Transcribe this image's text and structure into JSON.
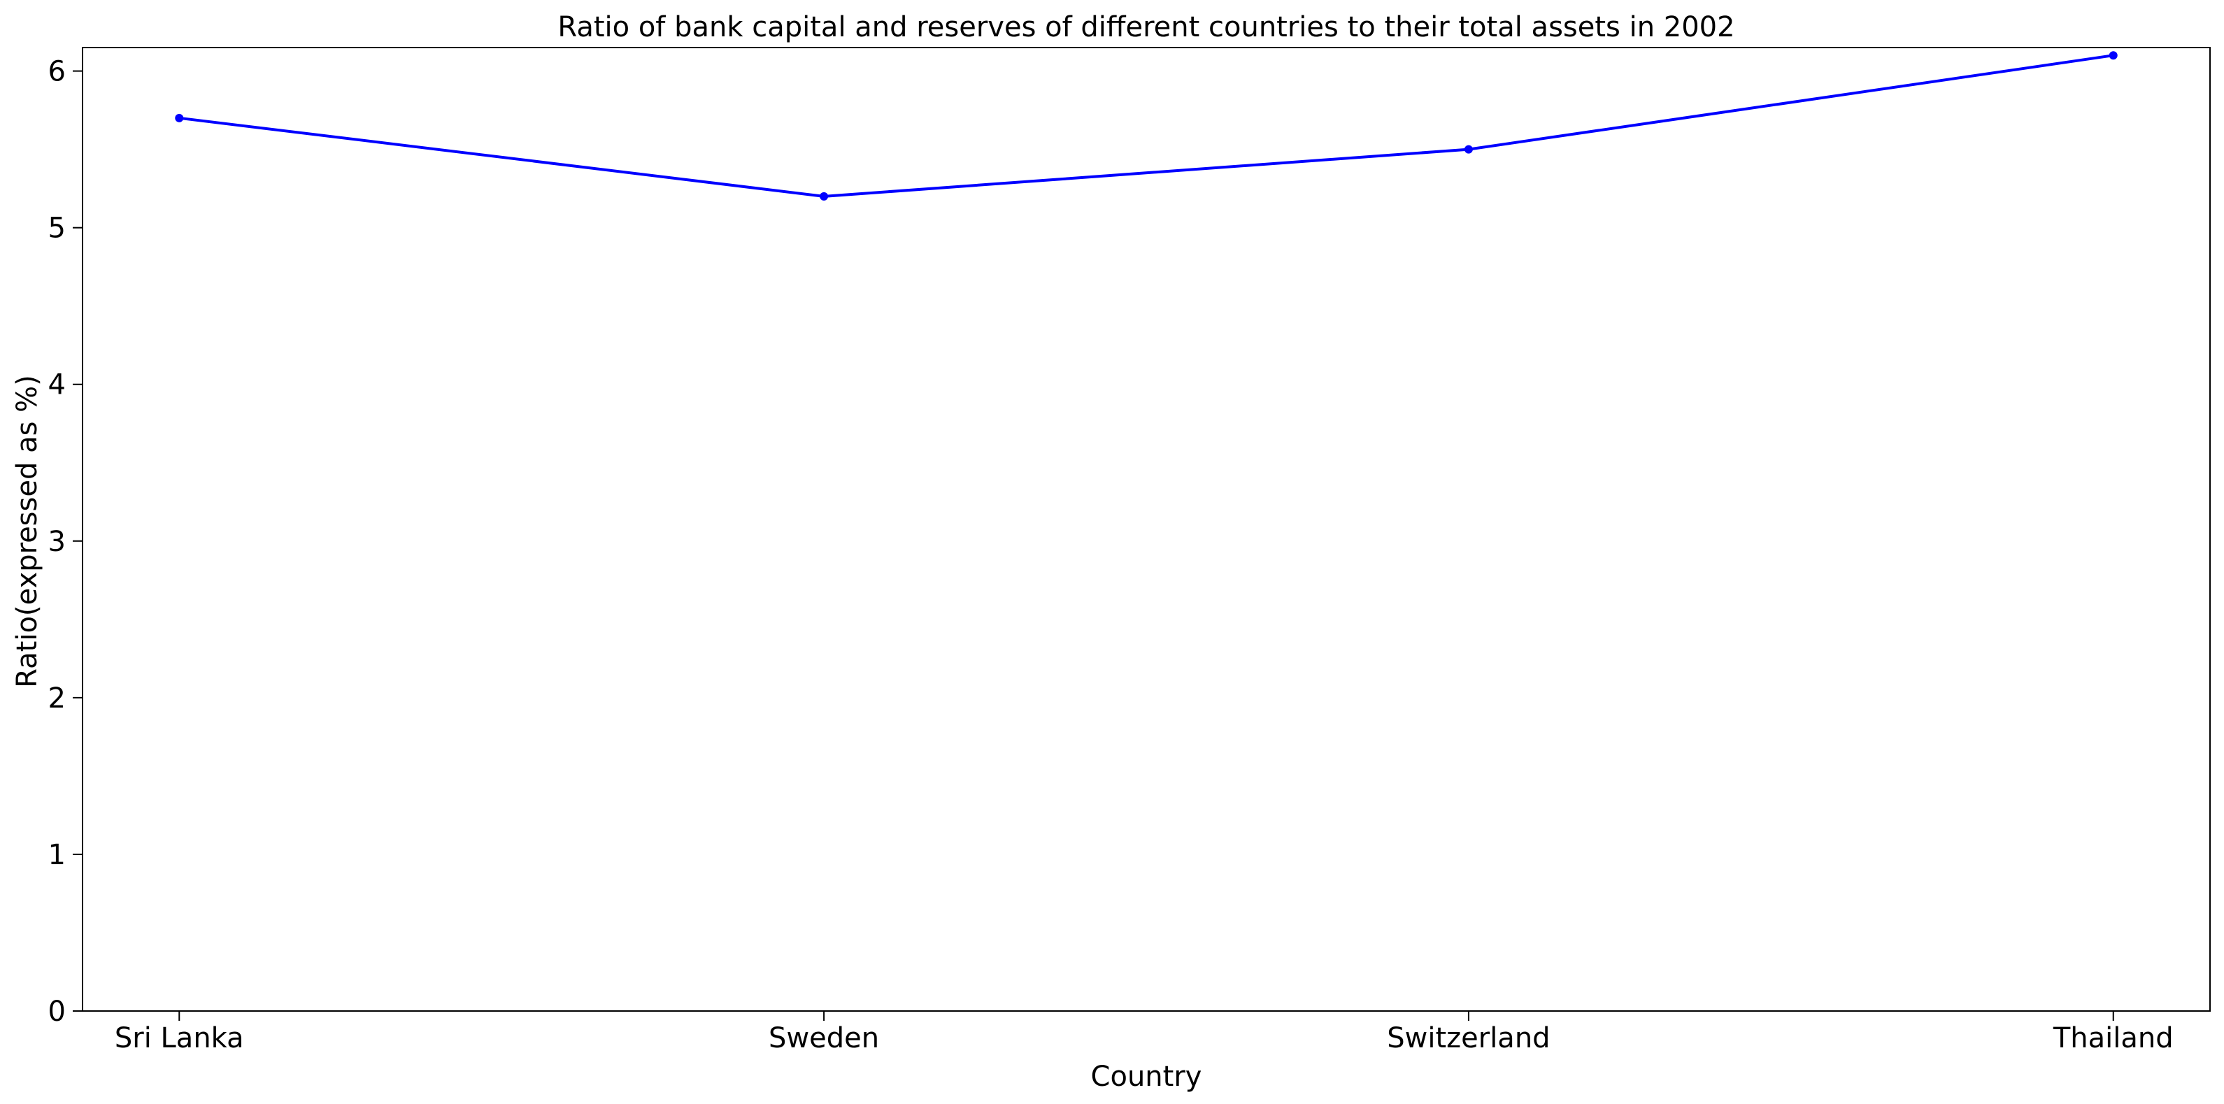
{
  "chart_data": {
    "type": "line",
    "title": "Ratio of bank capital and reserves of different countries to their total assets in 2002",
    "xlabel": "Country",
    "ylabel": "Ratio(expressed as %)",
    "categories": [
      "Sri Lanka",
      "Sweden",
      "Switzerland",
      "Thailand"
    ],
    "series": [
      {
        "values": [
          5.7,
          5.2,
          5.5,
          6.1
        ],
        "color": "#0000ff"
      }
    ],
    "ylim": [
      0,
      6.15
    ],
    "yticks": [
      0,
      1,
      2,
      3,
      4,
      5,
      6
    ],
    "grid": false,
    "legend": "none"
  }
}
